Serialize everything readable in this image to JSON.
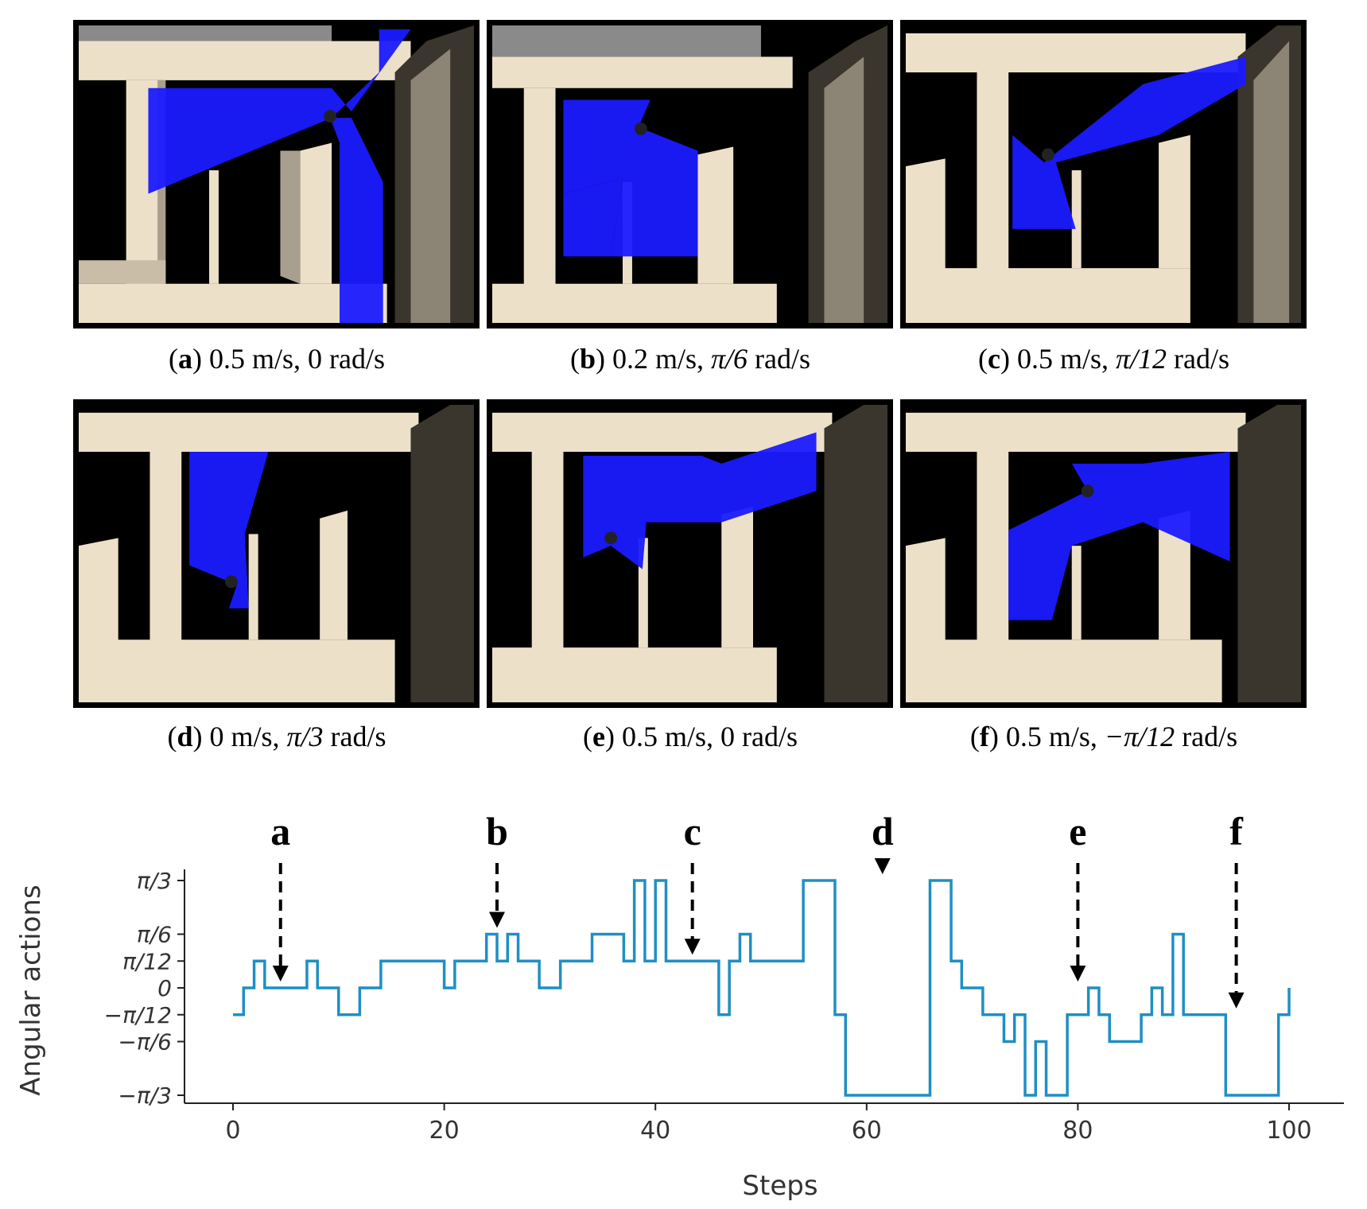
{
  "panels": [
    {
      "id": "a",
      "letter": "a",
      "speed": "0.5 m/s, ",
      "angular": "0",
      "unit": " rad/s"
    },
    {
      "id": "b",
      "letter": "b",
      "speed": "0.2 m/s, ",
      "angular": "π/6",
      "unit": " rad/s"
    },
    {
      "id": "c",
      "letter": "c",
      "speed": "0.5 m/s, ",
      "angular": "π/12",
      "unit": " rad/s"
    },
    {
      "id": "d",
      "letter": "d",
      "speed": "0 m/s, ",
      "angular": "π/3",
      "unit": " rad/s"
    },
    {
      "id": "e",
      "letter": "e",
      "speed": "0.5 m/s, ",
      "angular": "0",
      "unit": " rad/s"
    },
    {
      "id": "f",
      "letter": "f",
      "speed": "0.5 m/s, ",
      "angular": "−π/12",
      "unit": " rad/s"
    }
  ],
  "colors": {
    "wall": "#ede0c8",
    "wall_shade": "#a89f8e",
    "floor": "#000000",
    "scan": "#1a1aff",
    "top_gray": "#8a8a8a",
    "line": "#1f8fc4"
  },
  "chart_data": {
    "type": "line",
    "step": true,
    "xlabel": "Steps",
    "ylabel": "Angular actions",
    "xlim": [
      -5,
      105
    ],
    "xticks": [
      0,
      20,
      40,
      60,
      80,
      100
    ],
    "xtick_labels": [
      "0",
      "20",
      "40",
      "60",
      "80",
      "100"
    ],
    "yticks": [
      -4,
      -2,
      -1,
      0,
      1,
      2,
      4
    ],
    "ytick_labels": [
      "−π/3",
      "−π/6",
      "−π/12",
      "0",
      "π/12",
      "π/6",
      "π/3"
    ],
    "y_units": "multiples of π/12 rad/s",
    "series": [
      {
        "x": [
          0,
          1,
          2,
          3,
          7,
          8,
          10,
          12,
          14,
          20,
          21,
          24,
          25,
          26,
          27,
          29,
          31,
          34,
          37,
          38,
          39,
          40,
          41,
          45,
          46,
          47,
          48,
          49,
          54,
          57,
          58,
          66,
          68,
          69,
          71,
          73,
          74,
          75,
          76,
          77,
          79,
          81,
          82,
          83,
          86,
          87,
          88,
          89,
          90,
          94,
          99,
          100
        ],
        "y": [
          -1,
          0,
          1,
          0,
          1,
          0,
          -1,
          0,
          1,
          0,
          1,
          2,
          1,
          2,
          1,
          0,
          1,
          2,
          1,
          4,
          1,
          4,
          1,
          1,
          -1,
          1,
          2,
          1,
          4,
          -1,
          -4,
          4,
          1,
          0,
          -1,
          -2,
          -1,
          -4,
          -2,
          -4,
          -1,
          0,
          -1,
          -2,
          -1,
          0,
          -1,
          2,
          -1,
          -4,
          -1,
          0
        ]
      }
    ],
    "annotations": [
      {
        "label": "a",
        "x": 4.5,
        "y": 0
      },
      {
        "label": "b",
        "x": 25,
        "y": 2
      },
      {
        "label": "c",
        "x": 43.5,
        "y": 1
      },
      {
        "label": "d",
        "x": 61.5,
        "y": 4
      },
      {
        "label": "e",
        "x": 80,
        "y": 0
      },
      {
        "label": "f",
        "x": 95,
        "y": -1
      }
    ]
  }
}
